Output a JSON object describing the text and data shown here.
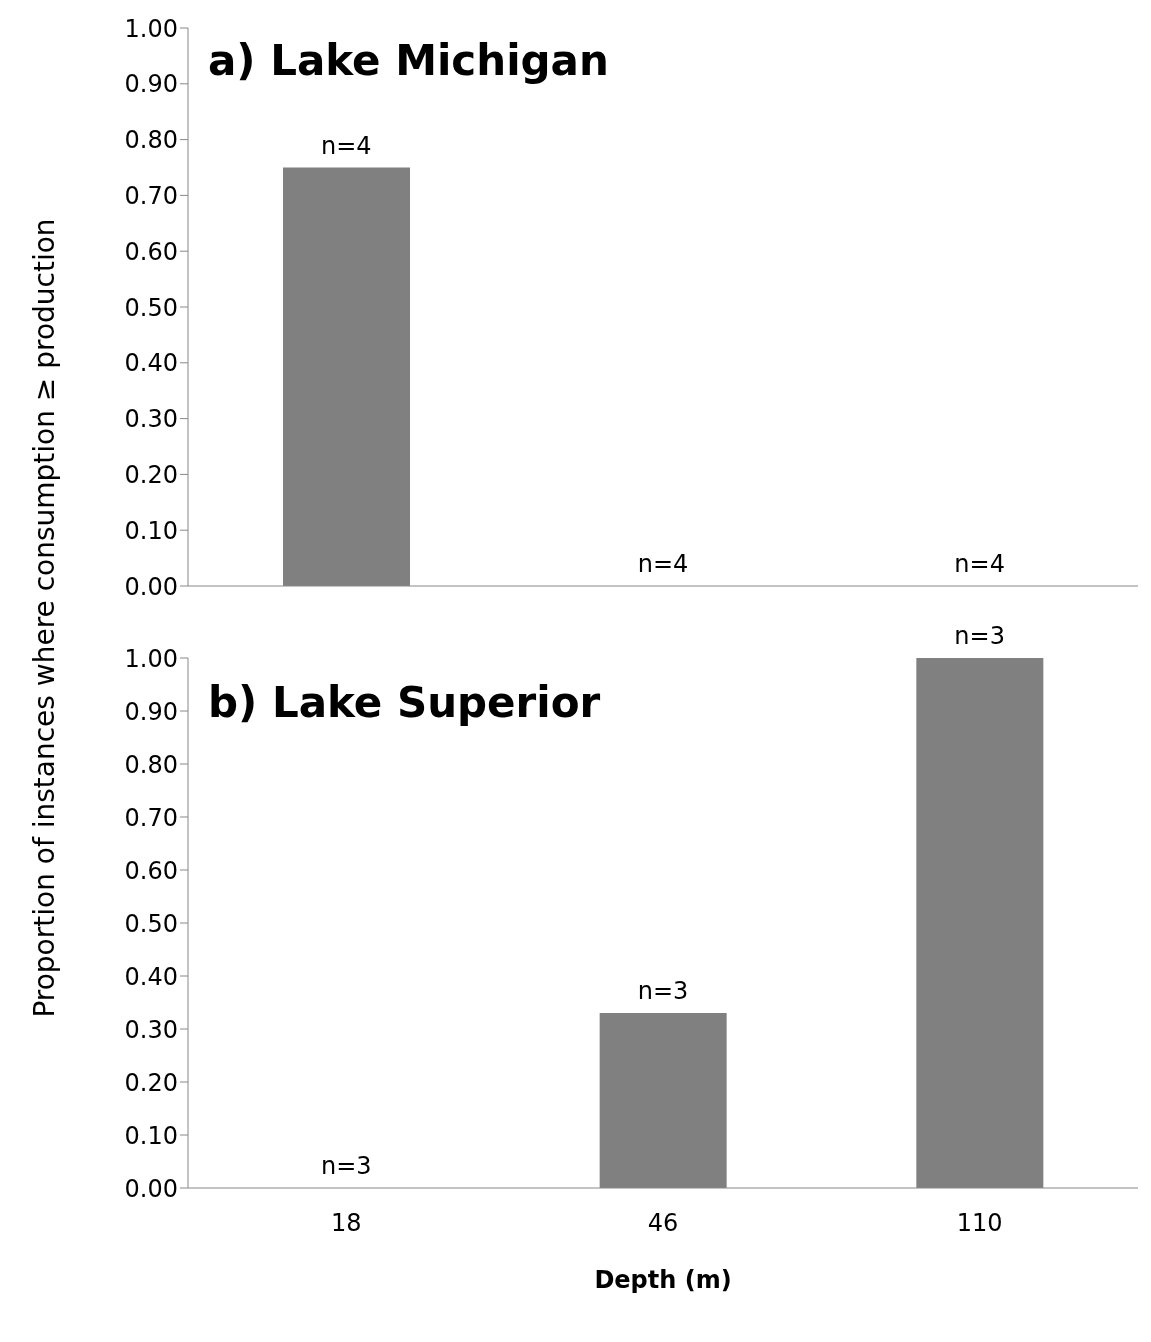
{
  "chart_data": [
    {
      "type": "bar",
      "title": "a) Lake Michigan",
      "ylabel": "Proportion of instances where consumption ≥ production",
      "categories": [
        "18",
        "46",
        "110"
      ],
      "values": [
        0.75,
        0,
        0
      ],
      "color": "#808080",
      "ylim": [
        0,
        1
      ],
      "yticks": [
        {
          "value": 0,
          "label": "0.00"
        },
        {
          "value": 0.1,
          "label": "0.10"
        },
        {
          "value": 0.2,
          "label": "0.20"
        },
        {
          "value": 0.3,
          "label": "0.30"
        },
        {
          "value": 0.4,
          "label": "0.40"
        },
        {
          "value": 0.5,
          "label": "0.50"
        },
        {
          "value": 0.6,
          "label": "0.60"
        },
        {
          "value": 0.7,
          "label": "0.70"
        },
        {
          "value": 0.8,
          "label": "0.80"
        },
        {
          "value": 0.9,
          "label": "0.90"
        },
        {
          "value": 1,
          "label": "1.00"
        }
      ],
      "grid": false,
      "tick_labels": "y",
      "annotations": [
        {
          "text": "n=4",
          "x": "18",
          "y": 0.75
        },
        {
          "text": "n=4",
          "x": "46",
          "y": 0
        },
        {
          "text": "n=4",
          "x": "110",
          "y": 0
        }
      ]
    },
    {
      "type": "bar",
      "title": "b) Lake Superior",
      "xlabel": "Depth (m)",
      "categories": [
        "18",
        "46",
        "110"
      ],
      "values": [
        0,
        0.33,
        1
      ],
      "color": "#808080",
      "ylim": [
        0,
        1
      ],
      "yticks": [
        {
          "value": 0,
          "label": "0.00"
        },
        {
          "value": 0.1,
          "label": "0.10"
        },
        {
          "value": 0.2,
          "label": "0.20"
        },
        {
          "value": 0.3,
          "label": "0.30"
        },
        {
          "value": 0.4,
          "label": "0.40"
        },
        {
          "value": 0.5,
          "label": "0.50"
        },
        {
          "value": 0.6,
          "label": "0.60"
        },
        {
          "value": 0.7,
          "label": "0.70"
        },
        {
          "value": 0.8,
          "label": "0.80"
        },
        {
          "value": 0.9,
          "label": "0.90"
        },
        {
          "value": 1,
          "label": "1.00"
        }
      ],
      "grid": false,
      "annotations": [
        {
          "text": "n=3",
          "x": "18",
          "y": 0
        },
        {
          "text": "n=3",
          "x": "46",
          "y": 0.33
        },
        {
          "text": "n=3",
          "x": "110",
          "y": 1
        }
      ]
    }
  ]
}
